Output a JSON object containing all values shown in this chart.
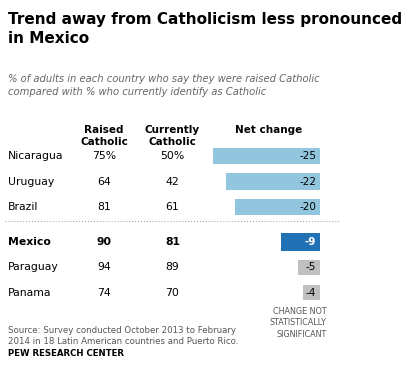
{
  "title": "Trend away from Catholicism less pronounced\nin Mexico",
  "subtitle": "% of adults in each country who say they were raised Catholic\ncompared with % who currently identify as Catholic",
  "col_headers": [
    "Raised\nCatholic",
    "Currently\nCatholic",
    "Net change"
  ],
  "countries": [
    "Nicaragua",
    "Uruguay",
    "Brazil",
    "Mexico",
    "Paraguay",
    "Panama"
  ],
  "raised": [
    "75%",
    "64",
    "81",
    "90",
    "94",
    "74"
  ],
  "current": [
    "50%",
    "42",
    "61",
    "81",
    "89",
    "70"
  ],
  "net_change": [
    -25,
    -22,
    -20,
    -9,
    -5,
    -4
  ],
  "net_change_labels": [
    "-25",
    "-22",
    "-20",
    "-9",
    "-5",
    "-4"
  ],
  "mexico_index": 3,
  "bar_color_light": "#92c5de",
  "bar_color_mexico": "#2171b5",
  "bar_color_gray": "#c0c0c0",
  "source_text": "Source: Survey conducted October 2013 to February\n2014 in 18 Latin American countries and Puerto Rico.",
  "footer": "PEW RESEARCH CENTER",
  "note_text": "CHANGE NOT\nSTATISTICALLY\nSIGNIFICANT",
  "background_color": "#ffffff",
  "title_color": "#000000",
  "subtitle_color": "#666666"
}
